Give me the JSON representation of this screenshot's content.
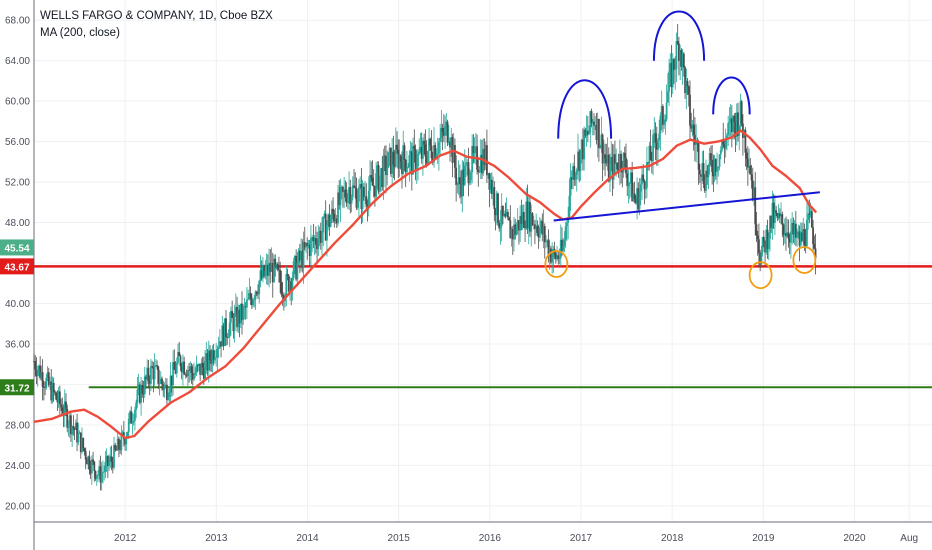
{
  "header": {
    "symbol": "WELLS FARGO & COMPANY, 1D, Cboe BZX",
    "indicator": "MA (200, close)"
  },
  "colors": {
    "price_up": "#26a69a",
    "price_down": "#4b4b4b",
    "ma": "#ef4b3b",
    "support_red": "#e31b1b",
    "support_green": "#2e7d1b",
    "neckline": "#1515d6",
    "head_shoulders": "#1515d6",
    "circles": "#f39c12",
    "badge_current": "#4caf87",
    "badge_red": "#e31b1b",
    "badge_green": "#2e7d1b"
  },
  "chart_data": {
    "type": "line",
    "title": "WELLS FARGO & COMPANY, 1D, Cboe BZX",
    "ylim": [
      18.4,
      70.0
    ],
    "xlim": [
      2011.0,
      2020.85
    ],
    "y_ticks": [
      "20.00",
      "24.00",
      "28.00",
      "32.00",
      "36.00",
      "40.00",
      "44.00",
      "48.00",
      "52.00",
      "56.00",
      "60.00",
      "64.00",
      "68.00"
    ],
    "y_tick_values": [
      20,
      24,
      28,
      32,
      36,
      40,
      44,
      48,
      52,
      56,
      60,
      64,
      68
    ],
    "x_ticks": [
      "2012",
      "2013",
      "2014",
      "2015",
      "2016",
      "2017",
      "2018",
      "2019",
      "2020",
      "Aug"
    ],
    "x_tick_values": [
      2012.0,
      2013.0,
      2014.0,
      2015.0,
      2016.0,
      2017.0,
      2018.0,
      2019.0,
      2020.0,
      2020.6
    ],
    "grid": true,
    "series": [
      {
        "name": "",
        "role": "price",
        "points": [
          [
            2011.0,
            34.3
          ],
          [
            2011.15,
            32.0
          ],
          [
            2011.3,
            29.8
          ],
          [
            2011.45,
            27.5
          ],
          [
            2011.6,
            24.5
          ],
          [
            2011.72,
            23.0
          ],
          [
            2011.85,
            24.5
          ],
          [
            2012.0,
            27.0
          ],
          [
            2012.15,
            31.0
          ],
          [
            2012.3,
            33.5
          ],
          [
            2012.45,
            31.5
          ],
          [
            2012.6,
            34.5
          ],
          [
            2012.75,
            33.0
          ],
          [
            2012.9,
            34.0
          ],
          [
            2013.0,
            36.0
          ],
          [
            2013.15,
            38.0
          ],
          [
            2013.3,
            39.0
          ],
          [
            2013.45,
            42.0
          ],
          [
            2013.6,
            43.5
          ],
          [
            2013.75,
            41.5
          ],
          [
            2013.9,
            44.0
          ],
          [
            2014.0,
            45.5
          ],
          [
            2014.15,
            47.0
          ],
          [
            2014.3,
            49.0
          ],
          [
            2014.45,
            51.5
          ],
          [
            2014.6,
            50.5
          ],
          [
            2014.75,
            52.0
          ],
          [
            2014.9,
            54.0
          ],
          [
            2015.0,
            54.5
          ],
          [
            2015.15,
            54.0
          ],
          [
            2015.3,
            55.0
          ],
          [
            2015.45,
            56.0
          ],
          [
            2015.55,
            57.5
          ],
          [
            2015.65,
            51.5
          ],
          [
            2015.8,
            54.0
          ],
          [
            2015.95,
            54.5
          ],
          [
            2016.1,
            48.5
          ],
          [
            2016.25,
            47.0
          ],
          [
            2016.4,
            49.0
          ],
          [
            2016.55,
            47.5
          ],
          [
            2016.7,
            44.5
          ],
          [
            2016.8,
            45.0
          ],
          [
            2016.9,
            53.0
          ],
          [
            2017.0,
            55.0
          ],
          [
            2017.15,
            58.5
          ],
          [
            2017.3,
            53.0
          ],
          [
            2017.45,
            54.5
          ],
          [
            2017.6,
            50.0
          ],
          [
            2017.75,
            54.0
          ],
          [
            2017.9,
            58.5
          ],
          [
            2018.0,
            63.0
          ],
          [
            2018.08,
            66.0
          ],
          [
            2018.2,
            58.0
          ],
          [
            2018.35,
            52.5
          ],
          [
            2018.5,
            54.5
          ],
          [
            2018.65,
            57.5
          ],
          [
            2018.75,
            58.5
          ],
          [
            2018.85,
            54.0
          ],
          [
            2018.97,
            44.5
          ],
          [
            2019.1,
            48.5
          ],
          [
            2019.25,
            47.5
          ],
          [
            2019.4,
            46.0
          ],
          [
            2019.52,
            48.0
          ],
          [
            2019.58,
            45.5
          ]
        ]
      },
      {
        "name": "MA (200, close)",
        "role": "ma",
        "points": [
          [
            2011.0,
            28.3
          ],
          [
            2011.2,
            28.6
          ],
          [
            2011.4,
            29.3
          ],
          [
            2011.55,
            29.5
          ],
          [
            2011.7,
            28.8
          ],
          [
            2011.85,
            27.8
          ],
          [
            2012.0,
            26.7
          ],
          [
            2012.1,
            26.9
          ],
          [
            2012.25,
            28.3
          ],
          [
            2012.5,
            30.2
          ],
          [
            2012.7,
            31.2
          ],
          [
            2012.9,
            32.6
          ],
          [
            2013.1,
            33.8
          ],
          [
            2013.3,
            35.6
          ],
          [
            2013.5,
            37.8
          ],
          [
            2013.7,
            40.0
          ],
          [
            2013.9,
            42.0
          ],
          [
            2014.1,
            44.0
          ],
          [
            2014.3,
            46.0
          ],
          [
            2014.5,
            47.8
          ],
          [
            2014.7,
            49.8
          ],
          [
            2014.9,
            51.5
          ],
          [
            2015.1,
            52.8
          ],
          [
            2015.3,
            53.6
          ],
          [
            2015.45,
            54.6
          ],
          [
            2015.6,
            55.1
          ],
          [
            2015.75,
            54.5
          ],
          [
            2015.9,
            54.3
          ],
          [
            2016.05,
            53.6
          ],
          [
            2016.2,
            52.5
          ],
          [
            2016.4,
            50.8
          ],
          [
            2016.55,
            50.0
          ],
          [
            2016.7,
            48.9
          ],
          [
            2016.8,
            48.3
          ],
          [
            2016.9,
            48.5
          ],
          [
            2017.0,
            49.6
          ],
          [
            2017.15,
            51.0
          ],
          [
            2017.3,
            52.3
          ],
          [
            2017.45,
            53.3
          ],
          [
            2017.6,
            53.4
          ],
          [
            2017.75,
            53.6
          ],
          [
            2017.9,
            54.3
          ],
          [
            2018.05,
            55.6
          ],
          [
            2018.2,
            56.2
          ],
          [
            2018.35,
            55.8
          ],
          [
            2018.5,
            56.0
          ],
          [
            2018.65,
            56.4
          ],
          [
            2018.75,
            57.1
          ],
          [
            2018.85,
            56.4
          ],
          [
            2018.97,
            55.2
          ],
          [
            2019.1,
            53.6
          ],
          [
            2019.25,
            52.6
          ],
          [
            2019.4,
            51.4
          ],
          [
            2019.5,
            49.8
          ],
          [
            2019.58,
            49.0
          ]
        ]
      }
    ],
    "annotations": {
      "neckline": {
        "from": [
          2016.7,
          48.2
        ],
        "to": [
          2019.62,
          51.0
        ]
      },
      "support_red": {
        "y": 43.67
      },
      "support_green": {
        "y": 31.72,
        "x_start": 2011.6
      },
      "head_and_shoulders_arcs": [
        {
          "x_start": 2016.75,
          "x_end": 2017.33,
          "y_base": 56.3,
          "y_top": 62.0
        },
        {
          "x_start": 2017.8,
          "x_end": 2018.35,
          "y_base": 64.0,
          "y_top": 68.8
        },
        {
          "x_start": 2018.45,
          "x_end": 2018.85,
          "y_base": 58.7,
          "y_top": 62.3
        }
      ],
      "circles": [
        {
          "x": 2016.73,
          "y": 43.9
        },
        {
          "x": 2018.97,
          "y": 42.8
        },
        {
          "x": 2019.45,
          "y": 44.3
        }
      ]
    },
    "price_badges": [
      {
        "label": "45.54",
        "value": 45.54,
        "color_key": "badge_current"
      },
      {
        "label": "43.67",
        "value": 43.67,
        "color_key": "badge_red"
      },
      {
        "label": "31.72",
        "value": 31.72,
        "color_key": "badge_green"
      }
    ]
  }
}
